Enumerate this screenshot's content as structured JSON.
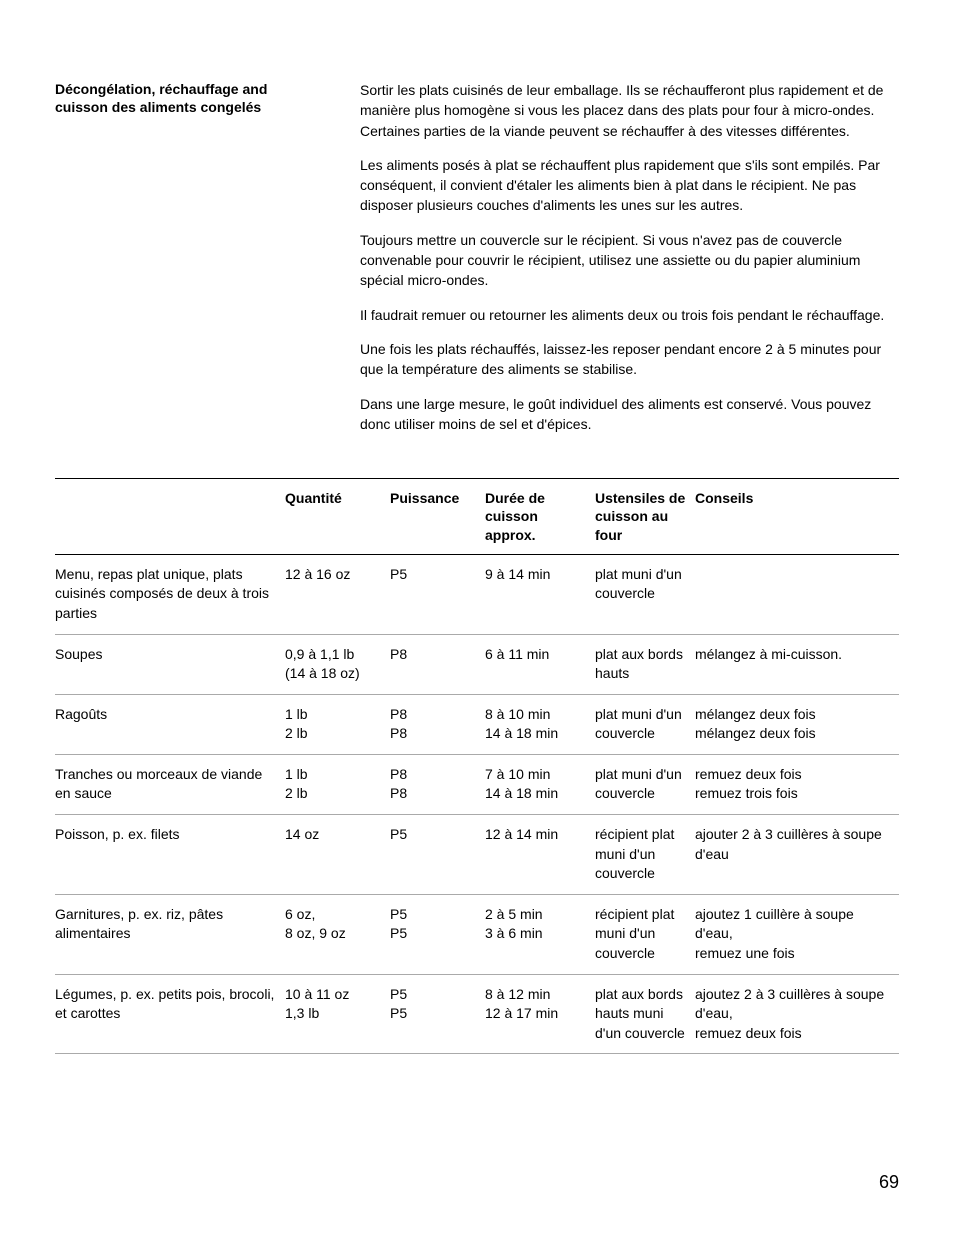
{
  "header": {
    "heading": "Décongélation, réchauffage and cuisson des aliments congelés"
  },
  "paragraphs": [
    "Sortir les plats cuisinés de leur emballage. Ils se réchaufferont plus rapidement et de manière plus homogène si vous les placez dans des plats pour four à micro-ondes. Certaines parties de la viande peuvent se réchauffer à des vitesses différentes.",
    "Les aliments posés à plat se réchauffent plus rapidement que s'ils sont empilés. Par conséquent, il convient d'étaler les aliments bien à plat dans le récipient. Ne pas disposer plusieurs couches d'aliments les unes sur les autres.",
    "Toujours mettre un couvercle sur le récipient. Si vous n'avez pas de couvercle convenable pour couvrir le récipient, utilisez une assiette ou du papier aluminium spécial micro-ondes.",
    "Il faudrait remuer ou retourner les aliments deux ou trois fois pendant le réchauffage.",
    "Une fois les plats réchauffés, laissez-les reposer pendant encore 2 à 5 minutes pour que la température des aliments se stabilise.",
    "Dans une large mesure, le goût individuel des aliments est conservé. Vous pouvez donc utiliser moins de sel et d'épices."
  ],
  "table": {
    "headers": [
      "",
      "Quantité",
      "Puissance",
      "Durée de cuisson approx.",
      "Ustensiles de cuisson au four",
      "Conseils"
    ],
    "rows": [
      [
        "Menu, repas plat unique, plats cuisinés composés de deux à trois parties",
        "12 à 16 oz",
        "P5",
        "9 à 14 min",
        "plat muni d'un couvercle",
        ""
      ],
      [
        "Soupes",
        "0,9 à 1,1 lb\n(14 à 18 oz)",
        "P8",
        "6 à 11 min",
        "plat aux bords hauts",
        "mélangez à mi-cuisson."
      ],
      [
        "Ragoûts",
        "1 lb\n2 lb",
        "P8\nP8",
        "8 à 10 min\n14 à 18 min",
        "plat muni d'un couvercle",
        "mélangez deux fois\nmélangez deux fois"
      ],
      [
        "Tranches ou morceaux de viande en sauce",
        "1 lb\n2 lb",
        "P8\nP8",
        "7 à 10 min\n14 à 18 min",
        "plat muni d'un couvercle",
        "remuez deux fois\nremuez trois fois"
      ],
      [
        "Poisson, p. ex. filets",
        "14 oz",
        "P5",
        "12 à 14 min",
        "récipient plat muni d'un couvercle",
        "ajouter 2 à 3 cuillères à soupe d'eau"
      ],
      [
        "Garnitures, p. ex. riz, pâtes alimentaires",
        "6 oz,\n8 oz, 9 oz",
        "P5\nP5",
        "2 à 5 min\n3 à 6 min",
        "récipient plat muni d'un couvercle",
        "ajoutez 1 cuillère à soupe d'eau,\nremuez une fois"
      ],
      [
        "Légumes, p. ex. petits pois, brocoli, et carottes",
        "10 à 11 oz\n1,3 lb",
        "P5\nP5",
        "8 à 12 min\n12 à 17 min",
        "plat aux bords hauts muni d'un couvercle",
        "ajoutez 2 à 3 cuillères à soupe d'eau,\nremuez deux fois"
      ]
    ]
  },
  "page_number": "69"
}
